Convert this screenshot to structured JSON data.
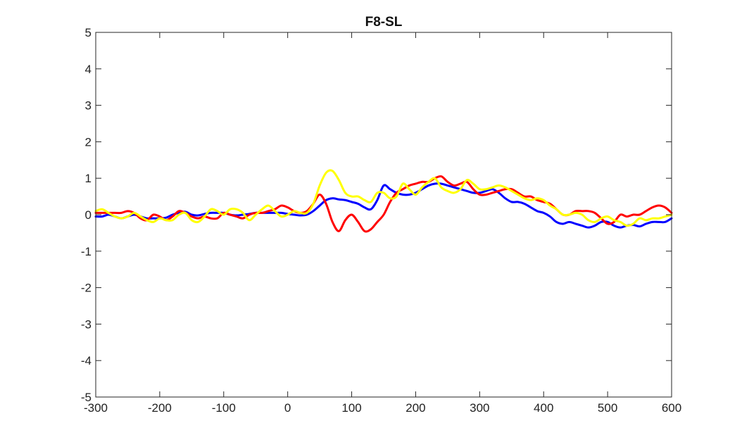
{
  "chart_data": {
    "type": "line",
    "title": "F8-SL",
    "xlabel": "",
    "ylabel": "",
    "xlim": [
      -300,
      600
    ],
    "ylim": [
      -5,
      5
    ],
    "xticks": [
      -300,
      -200,
      -100,
      0,
      100,
      200,
      300,
      400,
      500,
      600
    ],
    "yticks": [
      -5,
      -4,
      -3,
      -2,
      -1,
      0,
      1,
      2,
      3,
      4,
      5
    ],
    "grid": false,
    "legend": "none",
    "series": [
      {
        "color": "#0000ff",
        "x": [
          -300,
          -290,
          -280,
          -270,
          -260,
          -250,
          -240,
          -230,
          -220,
          -210,
          -200,
          -190,
          -180,
          -170,
          -160,
          -150,
          -140,
          -130,
          -120,
          -110,
          -100,
          -90,
          -80,
          -70,
          -60,
          -50,
          -40,
          -30,
          -20,
          -10,
          0,
          10,
          20,
          30,
          40,
          50,
          60,
          70,
          80,
          90,
          100,
          110,
          120,
          130,
          140,
          150,
          160,
          170,
          180,
          190,
          200,
          210,
          220,
          230,
          240,
          250,
          260,
          270,
          280,
          290,
          300,
          310,
          320,
          330,
          340,
          350,
          360,
          370,
          380,
          390,
          400,
          410,
          420,
          430,
          440,
          450,
          460,
          470,
          480,
          490,
          500,
          510,
          520,
          530,
          540,
          550,
          560,
          570,
          580,
          590,
          600
        ],
        "y": [
          -0.05,
          -0.05,
          0.0,
          -0.05,
          -0.1,
          -0.05,
          0.0,
          -0.05,
          -0.1,
          -0.1,
          -0.1,
          -0.08,
          0.0,
          0.05,
          0.08,
          0.0,
          -0.02,
          0.02,
          0.05,
          0.05,
          0.05,
          0.0,
          -0.02,
          0.0,
          0.02,
          0.05,
          0.05,
          0.05,
          0.05,
          0.05,
          0.02,
          0.0,
          -0.02,
          0.0,
          0.1,
          0.25,
          0.4,
          0.45,
          0.42,
          0.4,
          0.35,
          0.3,
          0.2,
          0.15,
          0.4,
          0.8,
          0.7,
          0.6,
          0.55,
          0.55,
          0.6,
          0.7,
          0.8,
          0.85,
          0.85,
          0.8,
          0.75,
          0.7,
          0.65,
          0.6,
          0.6,
          0.65,
          0.7,
          0.6,
          0.45,
          0.35,
          0.35,
          0.3,
          0.2,
          0.1,
          0.05,
          -0.05,
          -0.2,
          -0.25,
          -0.2,
          -0.25,
          -0.3,
          -0.35,
          -0.3,
          -0.2,
          -0.2,
          -0.3,
          -0.35,
          -0.3,
          -0.28,
          -0.32,
          -0.25,
          -0.2,
          -0.2,
          -0.2,
          -0.1
        ]
      },
      {
        "color": "#ff0000",
        "x": [
          -300,
          -290,
          -280,
          -270,
          -260,
          -250,
          -240,
          -230,
          -220,
          -210,
          -200,
          -190,
          -180,
          -170,
          -160,
          -150,
          -140,
          -130,
          -120,
          -110,
          -100,
          -90,
          -80,
          -70,
          -60,
          -50,
          -40,
          -30,
          -20,
          -10,
          0,
          10,
          20,
          30,
          40,
          50,
          60,
          70,
          80,
          90,
          100,
          110,
          120,
          130,
          140,
          150,
          160,
          170,
          180,
          190,
          200,
          210,
          220,
          230,
          240,
          250,
          260,
          270,
          280,
          290,
          300,
          310,
          320,
          330,
          340,
          350,
          360,
          370,
          380,
          390,
          400,
          410,
          420,
          430,
          440,
          450,
          460,
          470,
          480,
          490,
          500,
          510,
          520,
          530,
          540,
          550,
          560,
          570,
          580,
          590,
          600
        ],
        "y": [
          0.05,
          0.05,
          0.05,
          0.05,
          0.05,
          0.1,
          0.05,
          -0.1,
          -0.15,
          0.0,
          -0.05,
          -0.15,
          -0.05,
          0.1,
          0.05,
          -0.05,
          -0.1,
          -0.05,
          -0.1,
          -0.1,
          0.05,
          0.0,
          -0.05,
          -0.1,
          0.0,
          0.05,
          0.05,
          0.1,
          0.15,
          0.25,
          0.2,
          0.1,
          0.05,
          0.1,
          0.3,
          0.55,
          0.3,
          -0.2,
          -0.45,
          -0.15,
          0.0,
          -0.2,
          -0.45,
          -0.4,
          -0.2,
          0.0,
          0.35,
          0.6,
          0.7,
          0.8,
          0.85,
          0.9,
          0.9,
          1.0,
          1.05,
          0.9,
          0.8,
          0.85,
          0.9,
          0.7,
          0.55,
          0.55,
          0.6,
          0.65,
          0.7,
          0.7,
          0.6,
          0.5,
          0.5,
          0.4,
          0.35,
          0.3,
          0.15,
          0.0,
          0.0,
          0.1,
          0.1,
          0.1,
          0.05,
          -0.1,
          -0.25,
          -0.2,
          0.0,
          -0.05,
          0.0,
          0.0,
          0.1,
          0.2,
          0.25,
          0.2,
          0.05
        ]
      },
      {
        "color": "#ffff00",
        "x": [
          -300,
          -290,
          -280,
          -270,
          -260,
          -250,
          -240,
          -230,
          -220,
          -210,
          -200,
          -190,
          -180,
          -170,
          -160,
          -150,
          -140,
          -130,
          -120,
          -110,
          -100,
          -90,
          -80,
          -70,
          -60,
          -50,
          -40,
          -30,
          -20,
          -10,
          0,
          10,
          20,
          30,
          40,
          50,
          60,
          70,
          80,
          90,
          100,
          110,
          120,
          130,
          140,
          150,
          160,
          170,
          180,
          190,
          200,
          210,
          220,
          230,
          240,
          250,
          260,
          270,
          280,
          290,
          300,
          310,
          320,
          330,
          340,
          350,
          360,
          370,
          380,
          390,
          400,
          410,
          420,
          430,
          440,
          450,
          460,
          470,
          480,
          490,
          500,
          510,
          520,
          530,
          540,
          550,
          560,
          570,
          580,
          590,
          600
        ],
        "y": [
          0.1,
          0.15,
          0.05,
          -0.05,
          -0.1,
          -0.05,
          0.05,
          -0.05,
          -0.15,
          -0.2,
          -0.1,
          -0.15,
          -0.15,
          0.0,
          0.05,
          -0.15,
          -0.2,
          -0.05,
          0.15,
          0.1,
          0.0,
          0.15,
          0.15,
          0.05,
          -0.15,
          0.0,
          0.15,
          0.25,
          0.1,
          -0.05,
          0.0,
          0.1,
          0.05,
          0.05,
          0.3,
          0.8,
          1.15,
          1.2,
          0.95,
          0.6,
          0.5,
          0.5,
          0.4,
          0.35,
          0.6,
          0.6,
          0.45,
          0.5,
          0.85,
          0.7,
          0.55,
          0.75,
          0.9,
          1.0,
          0.75,
          0.65,
          0.6,
          0.7,
          0.95,
          0.85,
          0.7,
          0.7,
          0.75,
          0.8,
          0.75,
          0.65,
          0.55,
          0.45,
          0.4,
          0.45,
          0.4,
          0.25,
          0.15,
          0.0,
          0.0,
          0.05,
          0.0,
          -0.15,
          -0.2,
          -0.1,
          -0.05,
          -0.15,
          -0.2,
          -0.3,
          -0.25,
          -0.1,
          -0.15,
          -0.1,
          -0.1,
          -0.05,
          0.0
        ]
      }
    ]
  }
}
